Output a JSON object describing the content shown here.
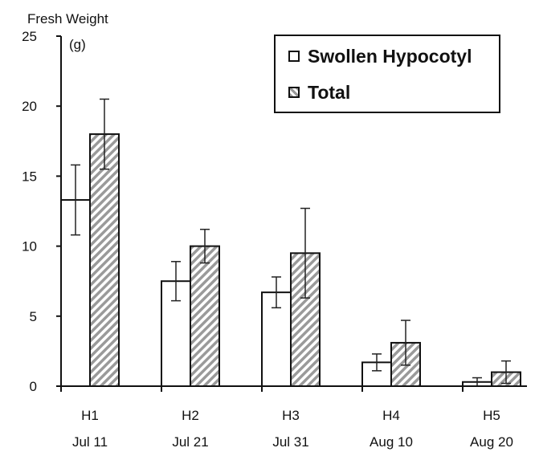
{
  "chart_data": {
    "type": "bar",
    "ylabel_lines": [
      "Fresh Weight",
      "(g)"
    ],
    "ylim": [
      0,
      25
    ],
    "yticks": [
      0,
      5,
      10,
      15,
      20,
      25
    ],
    "categories": [
      {
        "code": "H1",
        "date": "Jul 11"
      },
      {
        "code": "H2",
        "date": "Jul 21"
      },
      {
        "code": "H3",
        "date": "Jul 31"
      },
      {
        "code": "H4",
        "date": "Aug 10"
      },
      {
        "code": "H5",
        "date": "Aug 20"
      }
    ],
    "series": [
      {
        "name": "Swollen Hypocotyl",
        "fill": "white",
        "values": [
          13.3,
          7.5,
          6.7,
          1.7,
          0.3
        ],
        "errors": [
          2.5,
          1.4,
          1.1,
          0.6,
          0.3
        ]
      },
      {
        "name": "Total",
        "fill": "hatched",
        "values": [
          18.0,
          10.0,
          9.5,
          3.1,
          1.0
        ],
        "errors": [
          2.5,
          1.2,
          3.2,
          1.6,
          0.8
        ]
      }
    ],
    "legend_position": "top-right",
    "grid": false,
    "colors": {
      "axis": "#111111",
      "bar_outline": "#111111",
      "hatch": "#9a9a9a",
      "background": "#ffffff"
    }
  }
}
